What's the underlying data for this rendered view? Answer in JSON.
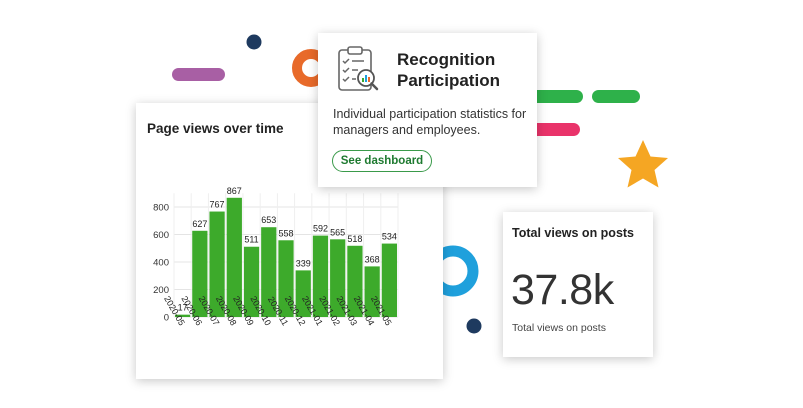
{
  "colors": {
    "bar": "#3daa2b",
    "purple_pill": "#a85fa4",
    "orange_ring": "#e86a2a",
    "navy_dot": "#1e3a5f",
    "green_pill": "#2eb14a",
    "pink_pill": "#e9336a",
    "star": "#f5a623",
    "blue_ring": "#1fa0dc",
    "button_green": "#3a9a4a"
  },
  "icons": {
    "recognition": "clipboard-checklist-magnifier-icon",
    "star": "star-icon"
  },
  "recognition_card": {
    "title": "Recognition Participation",
    "description": "Individual participation statistics for managers and employees.",
    "button_label": "See dashboard"
  },
  "views_card": {
    "heading": "Total views on posts",
    "value": "37.8k",
    "caption": "Total views on posts"
  },
  "chart_data": {
    "type": "bar",
    "title": "Page views over time",
    "xlabel": "",
    "ylabel": "",
    "categories": [
      "2020-05",
      "2020-06",
      "2020-07",
      "2020-08",
      "2020-09",
      "2020-10",
      "2020-11",
      "2020-12",
      "2021-01",
      "2021-02",
      "2021-03",
      "2021-04",
      "2021-05"
    ],
    "values": [
      17,
      627,
      767,
      867,
      511,
      653,
      558,
      339,
      592,
      565,
      518,
      368,
      534
    ],
    "yticks": [
      0,
      200,
      400,
      600,
      800
    ],
    "ylim": [
      0,
      867
    ],
    "grid": true,
    "data_labels": true
  }
}
